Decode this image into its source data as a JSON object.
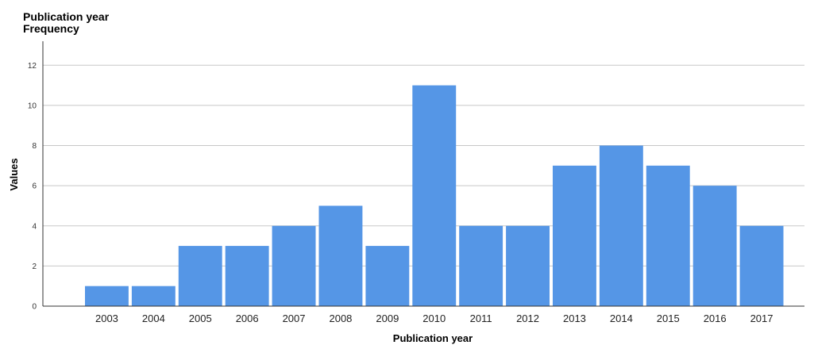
{
  "chart_data": {
    "type": "bar",
    "title": "Publication year",
    "subtitle": "Frequency",
    "xlabel": "Publication year",
    "ylabel": "Values",
    "categories": [
      "2003",
      "2004",
      "2005",
      "2006",
      "2007",
      "2008",
      "2009",
      "2010",
      "2011",
      "2012",
      "2013",
      "2014",
      "2015",
      "2016",
      "2017"
    ],
    "values": [
      1,
      1,
      3,
      3,
      4,
      5,
      3,
      11,
      4,
      4,
      7,
      8,
      7,
      6,
      4
    ],
    "ylim": [
      0,
      13
    ],
    "yticks": [
      0,
      2,
      4,
      6,
      8,
      10,
      12
    ],
    "grid": true,
    "bar_color": "#5596e6",
    "grid_color": "#c8c8c8"
  }
}
